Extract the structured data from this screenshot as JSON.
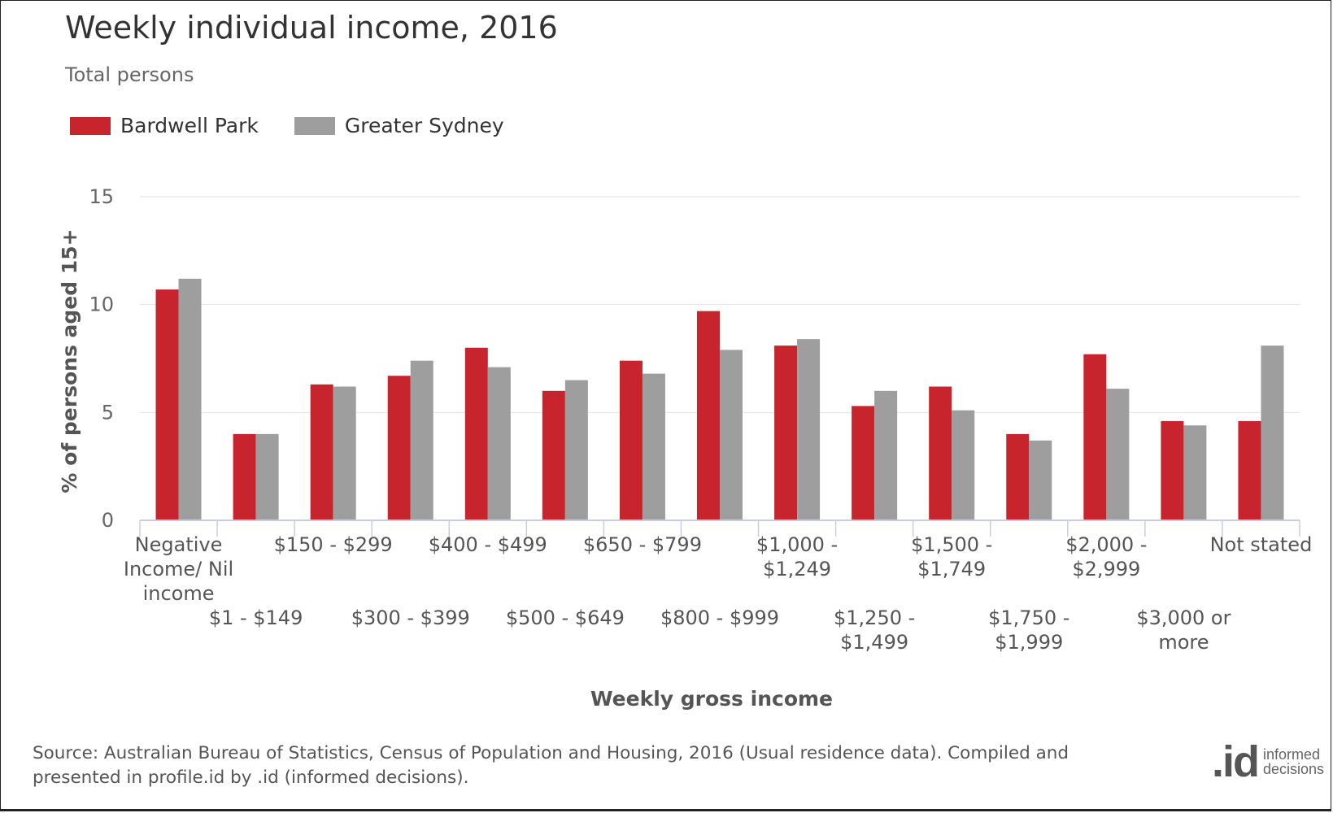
{
  "header": {
    "title": "Weekly individual income, 2016",
    "subtitle": "Total persons"
  },
  "legend": [
    {
      "label": "Bardwell Park",
      "color": "#c8242d"
    },
    {
      "label": "Greater Sydney",
      "color": "#9e9e9e"
    }
  ],
  "footer": {
    "source": "Source: Australian Bureau of Statistics, Census of Population and Housing, 2016 (Usual residence data). Compiled and presented in profile.id by .id (informed decisions).",
    "logo_mark": ".id",
    "logo_text_line1": "informed",
    "logo_text_line2": "decisions"
  },
  "chart_data": {
    "type": "bar",
    "title": "Weekly individual income, 2016",
    "subtitle": "Total persons",
    "xlabel": "Weekly gross income",
    "ylabel": "% of persons aged 15+",
    "ylim": [
      0,
      15
    ],
    "yticks": [
      0,
      5,
      10,
      15
    ],
    "grid": true,
    "legend_position": "top-left",
    "categories": [
      "Negative Income/ Nil income",
      "$1 - $149",
      "$150 - $299",
      "$300 - $399",
      "$400 - $499",
      "$500 - $649",
      "$650 - $799",
      "$800 - $999",
      "$1,000 - $1,249",
      "$1,250 - $1,499",
      "$1,500 - $1,749",
      "$1,750 - $1,999",
      "$2,000 - $2,999",
      "$3,000 or more",
      "Not stated"
    ],
    "category_label_lines": [
      [
        "Negative",
        "Income/ Nil",
        "income"
      ],
      [
        "$1 - $149"
      ],
      [
        "$150 - $299"
      ],
      [
        "$300 - $399"
      ],
      [
        "$400 - $499"
      ],
      [
        "$500 - $649"
      ],
      [
        "$650 - $799"
      ],
      [
        "$800 - $999"
      ],
      [
        "$1,000 -",
        "$1,249"
      ],
      [
        "$1,250 -",
        "$1,499"
      ],
      [
        "$1,500 -",
        "$1,749"
      ],
      [
        "$1,750 -",
        "$1,999"
      ],
      [
        "$2,000 -",
        "$2,999"
      ],
      [
        "$3,000 or",
        "more"
      ],
      [
        "Not stated"
      ]
    ],
    "series": [
      {
        "name": "Bardwell Park",
        "color": "#c8242d",
        "values": [
          10.7,
          4.0,
          6.3,
          6.7,
          8.0,
          6.0,
          7.4,
          9.7,
          8.1,
          5.3,
          6.2,
          4.0,
          7.7,
          4.6,
          4.6
        ]
      },
      {
        "name": "Greater Sydney",
        "color": "#9e9e9e",
        "values": [
          11.2,
          4.0,
          6.2,
          7.4,
          7.1,
          6.5,
          6.8,
          7.9,
          8.4,
          6.0,
          5.1,
          3.7,
          6.1,
          4.4,
          8.1
        ]
      }
    ]
  }
}
